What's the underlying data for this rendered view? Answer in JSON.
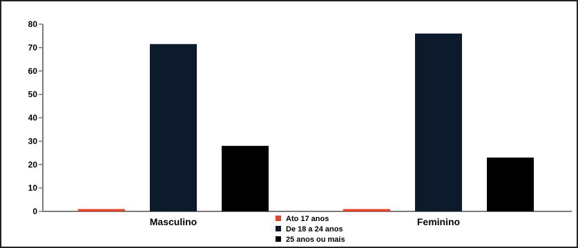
{
  "chart_data": {
    "type": "bar",
    "categories": [
      "Masculino",
      "Feminino"
    ],
    "series": [
      {
        "name": "Ato 17 anos",
        "color": "#e8412c",
        "values": [
          1,
          1
        ]
      },
      {
        "name": "De 18 a 24 anos",
        "color": "#0d1a2b",
        "values": [
          71.5,
          76
        ]
      },
      {
        "name": "25 anos ou mais",
        "color": "#000000",
        "values": [
          28,
          23
        ]
      }
    ],
    "title": "",
    "xlabel": "",
    "ylabel": "",
    "ylim": [
      0,
      80
    ],
    "yticks": [
      "0",
      "10",
      "20",
      "30",
      "40",
      "50",
      "60",
      "70",
      "80"
    ],
    "grid": false,
    "legend_position": "bottom-center"
  }
}
